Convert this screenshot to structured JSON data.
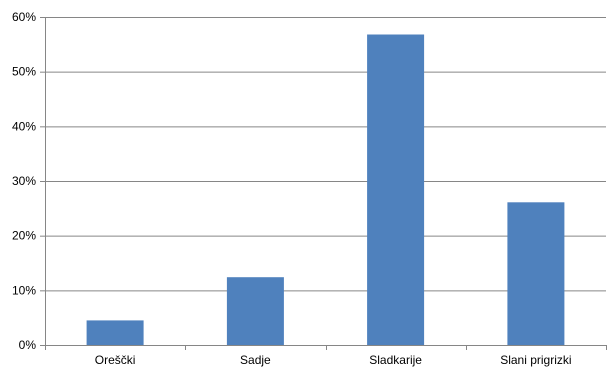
{
  "chart_data": {
    "type": "bar",
    "categories": [
      "Oreščki",
      "Sadje",
      "Sladkarije",
      "Slani prigrizki"
    ],
    "values": [
      4.5,
      12.4,
      56.8,
      26.1
    ],
    "y_ticks": [
      "0%",
      "10%",
      "20%",
      "30%",
      "40%",
      "50%",
      "60%"
    ],
    "ylim": [
      0,
      60
    ],
    "grid": true,
    "legend": "none",
    "bar_color": "#4F81BD",
    "grid_color": "#868686",
    "axis_color": "#868686"
  }
}
